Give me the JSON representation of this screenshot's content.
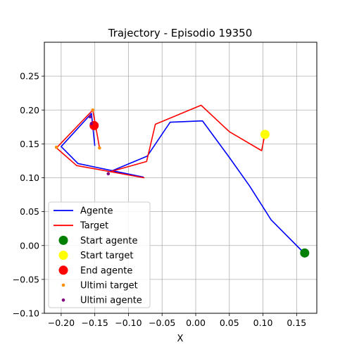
{
  "chart_data": {
    "type": "line",
    "title": "Trajectory - Episodio 19350",
    "xlabel": "X",
    "ylabel": "",
    "xlim": [
      -0.225,
      0.18
    ],
    "ylim": [
      -0.1,
      0.3
    ],
    "xticks": [
      -0.2,
      -0.15,
      -0.1,
      -0.05,
      0.0,
      0.05,
      0.1,
      0.15
    ],
    "xtick_labels": [
      "−0.20",
      "−0.15",
      "−0.10",
      "−0.05",
      "0.00",
      "0.05",
      "0.10",
      "0.15"
    ],
    "yticks": [
      -0.1,
      -0.05,
      0.0,
      0.05,
      0.1,
      0.15,
      0.2,
      0.25
    ],
    "ytick_labels": [
      "−0.10",
      "−0.05",
      "0.00",
      "0.05",
      "0.10",
      "0.15",
      "0.20",
      "0.25"
    ],
    "grid": true,
    "legend_placement": "lower-left",
    "series": [
      {
        "name": "Agente",
        "kind": "line",
        "color": "#0000ff",
        "points": [
          [
            0.16,
            -0.01
          ],
          [
            0.112,
            0.038
          ],
          [
            0.08,
            0.088
          ],
          [
            0.05,
            0.13
          ],
          [
            0.01,
            0.184
          ],
          [
            -0.038,
            0.182
          ],
          [
            -0.072,
            0.132
          ],
          [
            -0.125,
            0.11
          ],
          [
            -0.078,
            0.101
          ],
          [
            -0.175,
            0.121
          ],
          [
            -0.2,
            0.146
          ],
          [
            -0.155,
            0.195
          ],
          [
            -0.15,
            0.147
          ]
        ]
      },
      {
        "name": "Target",
        "kind": "line",
        "color": "#ff0000",
        "points": [
          [
            0.103,
            0.165
          ],
          [
            0.098,
            0.14
          ],
          [
            0.05,
            0.168
          ],
          [
            0.008,
            0.207
          ],
          [
            -0.06,
            0.179
          ],
          [
            -0.073,
            0.124
          ],
          [
            -0.127,
            0.109
          ],
          [
            -0.077,
            0.1
          ],
          [
            -0.177,
            0.118
          ],
          [
            -0.207,
            0.144
          ],
          [
            -0.153,
            0.2
          ],
          [
            -0.143,
            0.144
          ]
        ]
      },
      {
        "name": "Start agente",
        "kind": "marker",
        "color": "#008000",
        "points": [
          [
            0.162,
            -0.011
          ]
        ]
      },
      {
        "name": "Start target",
        "kind": "marker",
        "color": "#ffff00",
        "points": [
          [
            0.103,
            0.164
          ]
        ]
      },
      {
        "name": "End agente",
        "kind": "marker",
        "color": "#ff0000",
        "points": [
          [
            -0.151,
            0.177
          ]
        ]
      },
      {
        "name": "Ultimi target",
        "kind": "small-marker",
        "color": "#ff8c00",
        "points": [
          [
            -0.207,
            0.145
          ],
          [
            -0.143,
            0.144
          ],
          [
            -0.153,
            0.2
          ]
        ]
      },
      {
        "name": "Ultimi agente",
        "kind": "small-marker",
        "color": "#800080",
        "points": [
          [
            -0.13,
            0.106
          ],
          [
            -0.155,
            0.18
          ],
          [
            -0.157,
            0.19
          ]
        ]
      }
    ]
  }
}
